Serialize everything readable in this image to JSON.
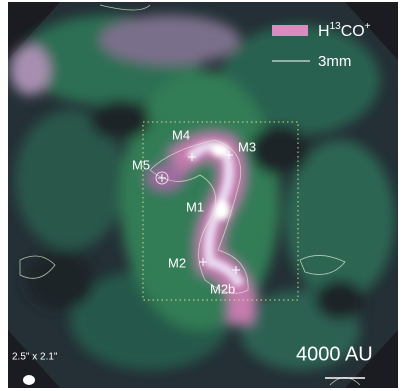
{
  "legend": {
    "emission": {
      "molecule": "H",
      "isotope": "13",
      "species": "CO",
      "charge": "+"
    },
    "contour": "3mm"
  },
  "sources": [
    "M4",
    "M3",
    "M5",
    "M1",
    "M2",
    "M2b"
  ],
  "beam": "2.5\" x 2.1\"",
  "scale_bar": "4000 AU"
}
